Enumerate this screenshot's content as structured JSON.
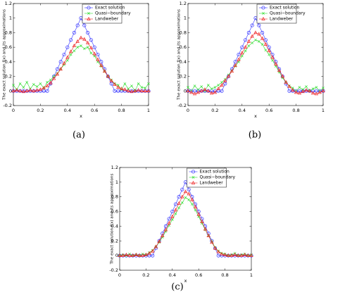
{
  "chart_data": [
    {
      "type": "line",
      "caption": "(a)",
      "xlabel": "x",
      "ylabel": "The exact solution f(x) and its approximations",
      "xlim": [
        0,
        1
      ],
      "ylim": [
        -0.2,
        1.2
      ],
      "xticks": [
        0,
        0.2,
        0.4,
        0.6,
        0.8,
        1
      ],
      "yticks": [
        -0.2,
        0,
        0.2,
        0.4,
        0.6,
        0.8,
        1,
        1.2
      ],
      "legend": "upper right",
      "grid": false,
      "x": [
        0,
        0.025,
        0.05,
        0.075,
        0.1,
        0.125,
        0.15,
        0.175,
        0.2,
        0.225,
        0.25,
        0.275,
        0.3,
        0.325,
        0.35,
        0.375,
        0.4,
        0.425,
        0.45,
        0.475,
        0.5,
        0.525,
        0.55,
        0.575,
        0.6,
        0.625,
        0.65,
        0.675,
        0.7,
        0.725,
        0.75,
        0.775,
        0.8,
        0.825,
        0.85,
        0.875,
        0.9,
        0.925,
        0.95,
        0.975,
        1
      ],
      "series": [
        {
          "name": "Exact solution",
          "color": "#3333ff",
          "marker": "circle",
          "values": [
            0,
            0,
            0,
            0,
            0,
            0,
            0,
            0,
            0,
            0,
            0,
            0.1,
            0.2,
            0.3,
            0.4,
            0.5,
            0.6,
            0.7,
            0.8,
            0.9,
            1,
            0.9,
            0.8,
            0.7,
            0.6,
            0.5,
            0.4,
            0.3,
            0.2,
            0.1,
            0,
            0,
            0,
            0,
            0,
            0,
            0,
            0,
            0,
            0,
            0
          ]
        },
        {
          "name": "Quasi−boundary",
          "color": "#33dd33",
          "marker": "cross",
          "values": [
            0.08,
            0.02,
            0.1,
            0.05,
            0.12,
            0.03,
            0.09,
            0.06,
            0.1,
            0.04,
            0.12,
            0.15,
            0.2,
            0.24,
            0.3,
            0.36,
            0.42,
            0.5,
            0.55,
            0.6,
            0.62,
            0.58,
            0.6,
            0.52,
            0.48,
            0.4,
            0.34,
            0.27,
            0.2,
            0.15,
            0.1,
            0.08,
            0.02,
            0.1,
            0.03,
            0.07,
            0,
            0.1,
            0.05,
            0.04,
            0.1
          ]
        },
        {
          "name": "Landweber",
          "color": "#ee2222",
          "marker": "triangle",
          "values": [
            0,
            0.01,
            0,
            -0.01,
            0,
            0.01,
            0,
            0.01,
            0.02,
            0.04,
            0.07,
            0.11,
            0.17,
            0.23,
            0.3,
            0.38,
            0.46,
            0.54,
            0.62,
            0.68,
            0.73,
            0.71,
            0.66,
            0.59,
            0.51,
            0.43,
            0.35,
            0.27,
            0.2,
            0.14,
            0.09,
            0.05,
            0.03,
            0.02,
            0,
            -0.01,
            0,
            0.01,
            0,
            0,
            0
          ]
        }
      ]
    },
    {
      "type": "line",
      "caption": "(b)",
      "xlabel": "x",
      "ylabel": "The exact solution f(x) and its approximations",
      "xlim": [
        0,
        1
      ],
      "ylim": [
        -0.2,
        1.2
      ],
      "xticks": [
        0,
        0.2,
        0.4,
        0.6,
        0.8,
        1
      ],
      "yticks": [
        -0.2,
        0,
        0.2,
        0.4,
        0.6,
        0.8,
        1,
        1.2
      ],
      "legend": "upper right",
      "grid": false,
      "x": [
        0,
        0.025,
        0.05,
        0.075,
        0.1,
        0.125,
        0.15,
        0.175,
        0.2,
        0.225,
        0.25,
        0.275,
        0.3,
        0.325,
        0.35,
        0.375,
        0.4,
        0.425,
        0.45,
        0.475,
        0.5,
        0.525,
        0.55,
        0.575,
        0.6,
        0.625,
        0.65,
        0.675,
        0.7,
        0.725,
        0.75,
        0.775,
        0.8,
        0.825,
        0.85,
        0.875,
        0.9,
        0.925,
        0.95,
        0.975,
        1
      ],
      "series": [
        {
          "name": "Exact solution",
          "color": "#3333ff",
          "marker": "circle",
          "values": [
            0,
            0,
            0,
            0,
            0,
            0,
            0,
            0,
            0,
            0,
            0,
            0.1,
            0.2,
            0.3,
            0.4,
            0.5,
            0.6,
            0.7,
            0.8,
            0.9,
            1,
            0.9,
            0.8,
            0.7,
            0.6,
            0.5,
            0.4,
            0.3,
            0.2,
            0.1,
            0,
            0,
            0,
            0,
            0,
            0,
            0,
            0,
            0,
            0,
            0
          ]
        },
        {
          "name": "Quasi−boundary",
          "color": "#33dd33",
          "marker": "cross",
          "values": [
            0.05,
            0,
            0.07,
            0.02,
            0.06,
            0,
            0.08,
            0.03,
            0.05,
            0.08,
            0.12,
            0.16,
            0.22,
            0.28,
            0.34,
            0.4,
            0.48,
            0.55,
            0.62,
            0.66,
            0.7,
            0.68,
            0.64,
            0.56,
            0.5,
            0.42,
            0.34,
            0.26,
            0.18,
            0.12,
            0.07,
            0.04,
            0,
            0.05,
            0.02,
            0.06,
            0,
            0.03,
            0.05,
            0,
            0.04
          ]
        },
        {
          "name": "Landweber",
          "color": "#ee2222",
          "marker": "triangle",
          "values": [
            0,
            -0.02,
            -0.04,
            -0.02,
            0,
            0.02,
            0,
            -0.03,
            -0.02,
            0.03,
            0.08,
            0.14,
            0.2,
            0.27,
            0.35,
            0.43,
            0.52,
            0.6,
            0.68,
            0.75,
            0.8,
            0.78,
            0.72,
            0.64,
            0.55,
            0.46,
            0.37,
            0.28,
            0.2,
            0.12,
            0.06,
            0.01,
            -0.02,
            -0.03,
            -0.01,
            0.01,
            0,
            -0.03,
            -0.04,
            -0.02,
            0
          ]
        }
      ]
    },
    {
      "type": "line",
      "caption": "(c)",
      "xlabel": "x",
      "ylabel": "The exact solution f(x) and its approximations",
      "xlim": [
        0,
        1
      ],
      "ylim": [
        -0.2,
        1.2
      ],
      "xticks": [
        0,
        0.2,
        0.4,
        0.6,
        0.8,
        1
      ],
      "yticks": [
        -0.2,
        0,
        0.2,
        0.4,
        0.6,
        0.8,
        1,
        1.2
      ],
      "legend": "upper right",
      "grid": false,
      "x": [
        0,
        0.025,
        0.05,
        0.075,
        0.1,
        0.125,
        0.15,
        0.175,
        0.2,
        0.225,
        0.25,
        0.275,
        0.3,
        0.325,
        0.35,
        0.375,
        0.4,
        0.425,
        0.45,
        0.475,
        0.5,
        0.525,
        0.55,
        0.575,
        0.6,
        0.625,
        0.65,
        0.675,
        0.7,
        0.725,
        0.75,
        0.775,
        0.8,
        0.825,
        0.85,
        0.875,
        0.9,
        0.925,
        0.95,
        0.975,
        1
      ],
      "series": [
        {
          "name": "Exact solution",
          "color": "#3333ff",
          "marker": "circle",
          "values": [
            0,
            0,
            0,
            0,
            0,
            0,
            0,
            0,
            0,
            0,
            0,
            0.1,
            0.2,
            0.3,
            0.4,
            0.5,
            0.6,
            0.7,
            0.8,
            0.9,
            1,
            0.9,
            0.8,
            0.7,
            0.6,
            0.5,
            0.4,
            0.3,
            0.2,
            0.1,
            0,
            0,
            0,
            0,
            0,
            0,
            0,
            0,
            0,
            0,
            0
          ]
        },
        {
          "name": "Quasi−boundary",
          "color": "#33dd33",
          "marker": "cross",
          "values": [
            0,
            0.01,
            0,
            0.02,
            0,
            0.01,
            0,
            0.02,
            0.01,
            0.04,
            0.07,
            0.12,
            0.18,
            0.25,
            0.33,
            0.41,
            0.49,
            0.57,
            0.65,
            0.72,
            0.79,
            0.76,
            0.7,
            0.62,
            0.53,
            0.44,
            0.35,
            0.27,
            0.19,
            0.11,
            0.06,
            0.03,
            0.02,
            0,
            0.01,
            0.03,
            0,
            0.01,
            0.02,
            0,
            0.01
          ]
        },
        {
          "name": "Landweber",
          "color": "#ee2222",
          "marker": "triangle",
          "values": [
            0,
            0,
            0.01,
            0,
            0,
            0.01,
            0,
            0,
            0.01,
            0.03,
            0.06,
            0.12,
            0.19,
            0.27,
            0.35,
            0.44,
            0.53,
            0.62,
            0.71,
            0.8,
            0.87,
            0.84,
            0.76,
            0.66,
            0.56,
            0.46,
            0.36,
            0.27,
            0.18,
            0.1,
            0.05,
            0.02,
            0.01,
            0,
            0,
            0.01,
            0,
            0,
            0.01,
            0,
            0
          ]
        }
      ]
    }
  ]
}
